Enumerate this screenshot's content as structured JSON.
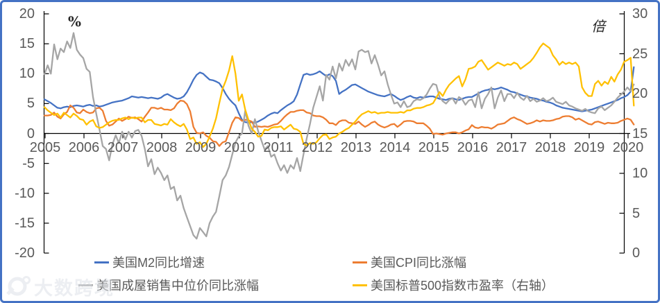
{
  "watermark": {
    "text": "大数跨境"
  },
  "chart_data": {
    "type": "line",
    "title": "",
    "x_axis": {
      "granularity": "monthly",
      "start": "2005-01",
      "end": "2020-03",
      "tick_labels": [
        "2005",
        "2006",
        "2007",
        "2008",
        "2009",
        "2010",
        "2011",
        "2012",
        "2013",
        "2014",
        "2015",
        "2016",
        "2017",
        "2018",
        "2019",
        "2020"
      ]
    },
    "left_axis": {
      "unit": "%",
      "min": -20,
      "max": 20,
      "ticks": [
        20,
        15,
        10,
        5,
        0,
        -5,
        -10,
        -15,
        -20
      ]
    },
    "right_axis": {
      "unit": "倍",
      "min": 0,
      "max": 30,
      "ticks": [
        30,
        25,
        20,
        15,
        10,
        5,
        0
      ]
    },
    "grid": false,
    "legend_position": "bottom",
    "series": [
      {
        "name": "美国M2同比增速",
        "color": "#4472C4",
        "axis": "left",
        "values": [
          5.7,
          5.4,
          5.1,
          4.7,
          4.3,
          4.2,
          4.4,
          4.5,
          4.4,
          4.6,
          4.7,
          4.6,
          4.5,
          4.7,
          4.8,
          4.6,
          4.7,
          4.5,
          4.6,
          4.8,
          5.0,
          5.2,
          5.3,
          5.4,
          5.5,
          5.7,
          5.9,
          6.2,
          6.1,
          6.0,
          6.1,
          6.0,
          5.9,
          6.0,
          5.9,
          5.8,
          6.0,
          6.4,
          6.6,
          6.3,
          6.0,
          5.8,
          5.9,
          6.2,
          6.9,
          7.9,
          9.0,
          9.8,
          10.2,
          10.0,
          9.5,
          9.0,
          8.9,
          8.7,
          8.4,
          7.6,
          6.6,
          5.8,
          5.2,
          4.7,
          3.4,
          2.3,
          1.9,
          1.8,
          1.9,
          1.8,
          2.0,
          2.3,
          2.6,
          3.0,
          3.3,
          3.5,
          3.4,
          3.9,
          4.3,
          4.7,
          5.0,
          5.4,
          6.5,
          8.2,
          9.8,
          10.0,
          9.8,
          9.9,
          10.1,
          10.4,
          10.0,
          9.6,
          9.9,
          9.6,
          8.8,
          6.6,
          7.0,
          7.3,
          7.7,
          8.1,
          8.2,
          7.9,
          7.6,
          7.3,
          7.0,
          6.8,
          6.6,
          6.4,
          6.3,
          6.2,
          6.4,
          6.6,
          6.3,
          5.9,
          5.6,
          5.8,
          6.1,
          6.3,
          6.0,
          5.9,
          6.1,
          6.0,
          6.1,
          6.2,
          6.2,
          6.0,
          5.8,
          5.7,
          5.6,
          5.8,
          5.9,
          5.7,
          5.6,
          5.8,
          6.0,
          6.1,
          6.1,
          6.4,
          6.7,
          7.0,
          7.2,
          7.3,
          7.5,
          7.4,
          7.5,
          7.7,
          7.5,
          7.3,
          7.0,
          6.9,
          6.7,
          6.5,
          6.3,
          6.2,
          6.0,
          5.9,
          5.8,
          5.6,
          5.5,
          5.3,
          5.2,
          5.0,
          4.7,
          4.5,
          4.3,
          4.2,
          4.1,
          4.0,
          3.9,
          3.8,
          3.7,
          3.8,
          3.9,
          4.0,
          4.2,
          4.4,
          4.6,
          4.8,
          5.0,
          5.2,
          5.4,
          5.6,
          5.9,
          6.1,
          6.4,
          7.0,
          11.1
        ]
      },
      {
        "name": "美国CPI同比涨幅",
        "color": "#ED7D31",
        "axis": "left",
        "values": [
          3.0,
          3.0,
          3.1,
          3.5,
          2.8,
          2.5,
          3.2,
          3.6,
          4.7,
          4.3,
          3.5,
          3.4,
          4.0,
          3.6,
          3.4,
          3.5,
          4.2,
          4.3,
          3.8,
          2.1,
          1.3,
          1.5,
          2.0,
          2.5,
          2.1,
          2.4,
          2.8,
          2.6,
          2.7,
          2.4,
          2.0,
          2.8,
          3.5,
          4.3,
          4.3,
          4.1,
          4.3,
          4.0,
          4.0,
          3.9,
          4.2,
          5.0,
          5.5,
          5.4,
          4.9,
          3.7,
          1.1,
          0.1,
          0.0,
          0.2,
          -0.4,
          -0.7,
          -1.3,
          -1.4,
          -2.1,
          -1.5,
          -1.3,
          0.2,
          1.8,
          2.7,
          2.6,
          2.1,
          2.3,
          2.2,
          2.0,
          1.1,
          1.2,
          1.1,
          1.2,
          1.1,
          1.3,
          1.5,
          1.6,
          2.1,
          2.7,
          3.2,
          3.6,
          3.6,
          3.8,
          3.9,
          3.9,
          3.5,
          3.4,
          3.0,
          2.9,
          2.9,
          2.7,
          2.3,
          1.7,
          1.7,
          1.4,
          2.0,
          2.2,
          2.2,
          1.8,
          1.7,
          1.6,
          2.0,
          1.5,
          1.1,
          1.4,
          1.8,
          2.0,
          1.5,
          1.2,
          1.0,
          1.2,
          1.5,
          1.6,
          1.1,
          1.5,
          2.0,
          2.1,
          2.1,
          2.0,
          1.7,
          1.7,
          1.7,
          1.3,
          0.8,
          -0.1,
          0.0,
          -0.1,
          -0.2,
          0.0,
          0.1,
          0.2,
          0.2,
          0.0,
          0.2,
          0.5,
          0.7,
          1.4,
          1.0,
          0.9,
          1.1,
          1.0,
          1.0,
          0.8,
          1.1,
          1.5,
          1.6,
          1.7,
          2.1,
          2.5,
          2.7,
          2.4,
          2.2,
          1.9,
          1.6,
          1.7,
          1.9,
          2.2,
          2.0,
          2.2,
          2.1,
          2.1,
          2.2,
          2.4,
          2.5,
          2.8,
          2.9,
          2.9,
          2.7,
          2.3,
          2.5,
          2.2,
          1.9,
          1.6,
          1.5,
          1.9,
          2.0,
          1.8,
          1.6,
          1.8,
          1.7,
          1.7,
          1.8,
          2.1,
          2.3,
          2.5,
          2.3,
          1.5
        ]
      },
      {
        "name": "美国成屋销售中位价同比涨幅",
        "color": "#A5A5A5",
        "axis": "left",
        "values": [
          9.9,
          11.4,
          10.0,
          14.9,
          12.4,
          14.2,
          13.6,
          15.4,
          14.3,
          16.8,
          14.0,
          13.2,
          12.6,
          10.8,
          10.3,
          6.1,
          3.3,
          0.7,
          -2.1,
          -2.6,
          -4.5,
          -1.8,
          -0.3,
          -1.6,
          0.3,
          -1.0,
          0.3,
          -0.7,
          0.4,
          0.6,
          -0.4,
          -2.6,
          -5.5,
          -4.3,
          -6.8,
          -5.7,
          -6.6,
          -7.8,
          -7.0,
          -9.3,
          -8.9,
          -11.2,
          -10.4,
          -12.5,
          -14.0,
          -15.5,
          -17.0,
          -17.6,
          -15.8,
          -16.5,
          -17.2,
          -15.0,
          -13.9,
          -13.1,
          -10.5,
          -7.8,
          -7.0,
          -5.6,
          -3.5,
          -1.5,
          -0.5,
          0.0,
          3.8,
          1.3,
          0.0,
          2.4,
          0.4,
          -1.2,
          -2.7,
          -2.1,
          -3.9,
          -3.5,
          -5.0,
          -6.2,
          -5.3,
          -6.6,
          -5.3,
          -5.9,
          -4.1,
          -6.3,
          -3.5,
          -0.8,
          1.6,
          4.3,
          6.1,
          7.9,
          5.5,
          9.8,
          9.0,
          11.2,
          9.2,
          11.7,
          10.5,
          12.3,
          11.3,
          12.4,
          10.7,
          13.7,
          14.0,
          13.6,
          13.8,
          11.7,
          13.1,
          11.5,
          9.7,
          10.4,
          8.2,
          6.5,
          5.0,
          5.2,
          4.4,
          5.4,
          4.4,
          4.6,
          5.4,
          5.7,
          5.6,
          5.9,
          6.5,
          7.5,
          8.3,
          8.1,
          6.1,
          5.4,
          5.0,
          5.6,
          5.9,
          5.0,
          6.1,
          5.7,
          4.8,
          5.5,
          5.7,
          4.4,
          6.9,
          4.2,
          5.8,
          6.6,
          7.7,
          4.2,
          6.0,
          7.2,
          5.4,
          6.6,
          6.6,
          5.9,
          6.8,
          6.0,
          5.6,
          6.3,
          5.4,
          5.8,
          5.3,
          5.5,
          5.9,
          5.4,
          5.6,
          6.0,
          5.3,
          5.1,
          4.9,
          5.3,
          4.7,
          4.5,
          4.2,
          4.0,
          3.8,
          4.1,
          3.7,
          3.5,
          3.4,
          4.2,
          4.5,
          3.9,
          4.3,
          4.7,
          5.3,
          6.0,
          6.5,
          7.0,
          7.7,
          7.1,
          8.2
        ]
      },
      {
        "name": "美国标普500指数市盈率（右轴）",
        "color": "#FFC000",
        "axis": "right",
        "values": [
          18.3,
          17.9,
          17.6,
          17.3,
          17.5,
          17.0,
          17.6,
          17.3,
          17.0,
          17.5,
          17.2,
          16.8,
          16.7,
          16.1,
          16.5,
          16.7,
          15.9,
          15.7,
          15.8,
          16.1,
          16.4,
          16.6,
          16.7,
          16.7,
          16.9,
          17.0,
          16.8,
          17.0,
          16.9,
          17.0,
          17.0,
          16.4,
          16.7,
          16.7,
          16.2,
          16.1,
          16.0,
          16.2,
          16.1,
          16.8,
          16.4,
          16.1,
          15.9,
          16.2,
          15.5,
          14.3,
          14.5,
          13.7,
          13.9,
          13.3,
          13.7,
          14.6,
          15.6,
          16.9,
          18.8,
          20.6,
          21.6,
          22.9,
          24.7,
          22.5,
          19.1,
          19.9,
          18.0,
          16.7,
          15.6,
          15.2,
          14.6,
          14.7,
          15.5,
          15.4,
          15.7,
          15.8,
          15.8,
          15.9,
          15.5,
          15.8,
          16.1,
          15.6,
          15.5,
          15.2,
          13.7,
          13.5,
          13.8,
          13.7,
          13.9,
          14.4,
          14.8,
          14.9,
          14.3,
          14.5,
          14.6,
          15.0,
          15.2,
          15.5,
          15.7,
          16.1,
          16.5,
          17.0,
          17.4,
          17.6,
          17.8,
          17.6,
          17.7,
          17.5,
          17.6,
          17.6,
          17.7,
          17.6,
          17.6,
          17.6,
          17.7,
          17.6,
          17.9,
          17.9,
          18.1,
          18.2,
          18.2,
          18.3,
          18.5,
          18.6,
          18.8,
          19.5,
          20.2,
          19.7,
          20.5,
          21.1,
          21.5,
          21.9,
          22.2,
          20.9,
          21.8,
          23.1,
          23.2,
          23.4,
          24.0,
          24.2,
          23.6,
          23.0,
          23.3,
          23.6,
          23.9,
          23.7,
          23.5,
          23.7,
          23.6,
          23.9,
          23.7,
          23.1,
          23.4,
          23.7,
          24.0,
          24.5,
          25.1,
          25.8,
          26.3,
          26.0,
          25.7,
          24.8,
          24.3,
          23.6,
          24.0,
          23.7,
          23.9,
          23.7,
          23.9,
          23.4,
          20.8,
          20.1,
          19.7,
          19.7,
          21.2,
          21.6,
          21.0,
          21.5,
          21.2,
          22.1,
          21.5,
          22.4,
          23.0,
          24.0,
          24.2,
          24.5,
          18.5
        ]
      }
    ]
  }
}
